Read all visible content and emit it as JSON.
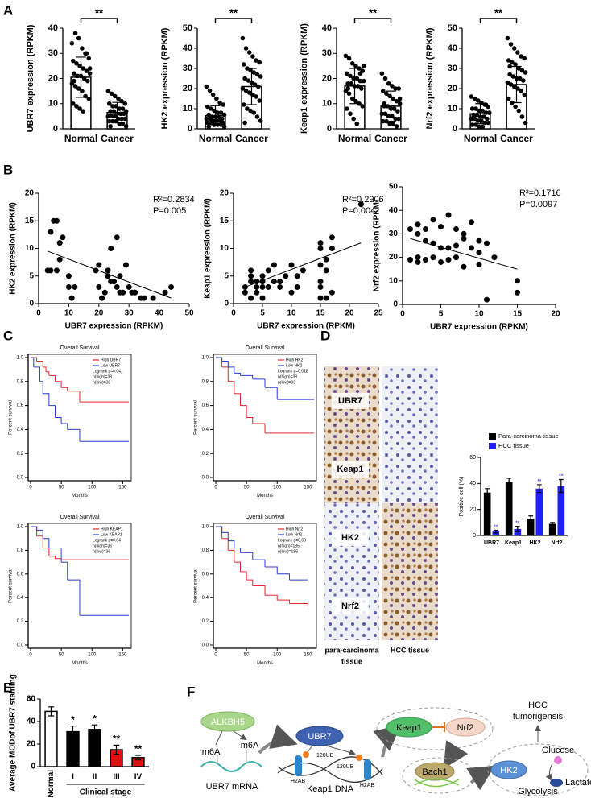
{
  "panel_labels": [
    "A",
    "B",
    "C",
    "D",
    "E",
    "F"
  ],
  "chart_data": [
    {
      "type": "bar",
      "ylabel": "UBR7 expression (RPKM)",
      "categories": [
        "Normal",
        "Cancer"
      ],
      "values": [
        20.5,
        6.5
      ],
      "errors": [
        8,
        4
      ],
      "ylim": [
        0,
        40
      ],
      "yticks": [
        0,
        10,
        20,
        30,
        40
      ],
      "significance": "**",
      "points": [
        [
          34,
          38,
          36,
          32,
          30,
          28,
          27,
          26,
          25,
          24,
          23,
          22,
          22,
          21,
          21,
          20,
          19,
          18,
          17,
          16,
          15,
          13,
          12,
          10,
          9,
          8,
          7,
          30,
          24,
          19
        ],
        [
          15,
          14,
          13,
          12,
          11,
          10,
          10,
          9,
          9,
          8,
          8,
          7,
          7,
          7,
          6,
          6,
          6,
          5,
          5,
          5,
          4,
          4,
          4,
          3,
          3,
          3,
          2,
          2,
          1,
          1
        ]
      ]
    },
    {
      "type": "bar",
      "ylabel": "HK2 expression (RPKM)",
      "categories": [
        "Normal",
        "Cancer"
      ],
      "values": [
        6.5,
        21
      ],
      "errors": [
        5,
        9
      ],
      "ylim": [
        0,
        50
      ],
      "yticks": [
        0,
        10,
        20,
        30,
        40,
        50
      ],
      "significance": "**",
      "points": [
        [
          21,
          19,
          17,
          15,
          13,
          12,
          11,
          10,
          9,
          8,
          8,
          7,
          7,
          6,
          6,
          6,
          5,
          5,
          5,
          4,
          4,
          4,
          3,
          3,
          3,
          2,
          2,
          2,
          1,
          1
        ],
        [
          45,
          40,
          38,
          36,
          34,
          33,
          32,
          30,
          29,
          28,
          27,
          26,
          25,
          24,
          23,
          22,
          21,
          20,
          19,
          18,
          17,
          16,
          14,
          12,
          10,
          9,
          8,
          6,
          4,
          3
        ]
      ]
    },
    {
      "type": "bar",
      "ylabel": "Keap1 expression (RPKM)",
      "categories": [
        "Normal",
        "Cancer"
      ],
      "values": [
        17,
        9
      ],
      "errors": [
        7,
        6
      ],
      "ylim": [
        0,
        40
      ],
      "yticks": [
        0,
        10,
        20,
        30,
        40
      ],
      "significance": "**",
      "points": [
        [
          29,
          28,
          26,
          25,
          24,
          23,
          22,
          21,
          20,
          20,
          19,
          19,
          18,
          18,
          17,
          17,
          16,
          15,
          14,
          12,
          11,
          10,
          9,
          8,
          6,
          4,
          2,
          22,
          25,
          16
        ],
        [
          22,
          20,
          18,
          17,
          16,
          16,
          15,
          14,
          13,
          12,
          11,
          10,
          9,
          9,
          8,
          8,
          7,
          6,
          6,
          5,
          5,
          4,
          4,
          3,
          3,
          2,
          2,
          1,
          12,
          10
        ]
      ]
    },
    {
      "type": "bar",
      "ylabel": "Nrf2 expression (RPKM)",
      "categories": [
        "Normal",
        "Cancer"
      ],
      "values": [
        7.5,
        22
      ],
      "errors": [
        5,
        9
      ],
      "ylim": [
        0,
        50
      ],
      "yticks": [
        0,
        10,
        20,
        30,
        40,
        50
      ],
      "significance": "**",
      "points": [
        [
          16,
          15,
          14,
          13,
          12,
          11,
          10,
          10,
          9,
          9,
          8,
          8,
          7,
          7,
          6,
          6,
          5,
          5,
          5,
          4,
          4,
          3,
          3,
          2,
          2,
          1,
          1,
          12,
          8,
          6
        ],
        [
          45,
          42,
          40,
          38,
          36,
          35,
          34,
          33,
          32,
          30,
          29,
          28,
          27,
          26,
          25,
          25,
          24,
          23,
          22,
          21,
          20,
          19,
          17,
          15,
          13,
          11,
          9,
          6,
          3,
          31
        ]
      ]
    },
    {
      "type": "scatter",
      "xlabel": "UBR7 expression (RPKM)",
      "ylabel": "HK2 expression (RPKM)",
      "xlim": [
        0,
        50
      ],
      "xticks": [
        0,
        10,
        20,
        30,
        40,
        50
      ],
      "ylim": [
        0,
        20
      ],
      "yticks": [
        0,
        5,
        10,
        15,
        20
      ],
      "annotations": [
        "R²=0.2834",
        "P=0.005"
      ],
      "x": [
        3,
        4,
        5,
        6,
        7,
        7,
        8,
        6,
        4,
        10,
        10,
        11,
        12,
        19,
        20,
        20,
        21,
        22,
        23,
        24,
        24,
        25,
        26,
        26,
        27,
        28,
        29,
        30,
        31,
        32,
        34,
        35,
        38,
        42,
        44,
        23,
        27
      ],
      "y": [
        6,
        13,
        15,
        15,
        11,
        8,
        12,
        6,
        6,
        5,
        3,
        1,
        3,
        6,
        7,
        3,
        1,
        2,
        6,
        4,
        10,
        4,
        12,
        3,
        2,
        2,
        7,
        3,
        2,
        2,
        1,
        1,
        1,
        2,
        3,
        5,
        5
      ],
      "fit": {
        "x": [
          3,
          44
        ],
        "y": [
          9.5,
          1
        ]
      }
    },
    {
      "type": "scatter",
      "xlabel": "UBR7 expression (RPKM)",
      "ylabel": "Keap1 expression (RPKM)",
      "xlim": [
        0,
        25
      ],
      "xticks": [
        0,
        5,
        10,
        15,
        20,
        25
      ],
      "ylim": [
        0,
        20
      ],
      "yticks": [
        0,
        5,
        10,
        15,
        20
      ],
      "annotations": [
        "R²=0.2906",
        "P=0.004"
      ],
      "x": [
        2,
        2,
        3,
        3,
        3,
        4,
        4,
        4,
        5,
        5,
        5,
        6,
        6,
        7,
        7,
        8,
        8,
        9,
        10,
        10,
        11,
        11,
        12,
        15,
        15,
        15,
        15,
        15,
        16,
        16,
        17,
        17,
        17,
        16,
        15,
        22,
        5,
        3
      ],
      "y": [
        2,
        3,
        4,
        5,
        6,
        3,
        4,
        2,
        3,
        4,
        5,
        3,
        6,
        4,
        7,
        3,
        4,
        5,
        2,
        7,
        3,
        5,
        6,
        3,
        4,
        7,
        10,
        11,
        6,
        8,
        10,
        12,
        2,
        1,
        1,
        18,
        1,
        1
      ],
      "fit": {
        "x": [
          2,
          22
        ],
        "y": [
          3,
          11
        ]
      }
    },
    {
      "type": "scatter",
      "xlabel": "UBR7 expression (RPKM)",
      "ylabel": "Nrf2 expression (RPKM)",
      "xlim": [
        0,
        20
      ],
      "xticks": [
        0,
        5,
        10,
        15,
        20
      ],
      "ylim": [
        0,
        50
      ],
      "yticks": [
        0,
        10,
        20,
        30,
        40,
        50
      ],
      "annotations": [
        "R²=0.1716",
        "P=0.0097"
      ],
      "x": [
        1,
        1,
        2,
        2,
        2,
        3,
        3,
        3,
        4,
        4,
        4,
        5,
        5,
        5,
        6,
        6,
        7,
        7,
        7,
        8,
        8,
        8,
        9,
        9,
        10,
        10,
        10,
        11,
        11,
        12,
        15,
        15,
        6,
        2
      ],
      "y": [
        19,
        32,
        18,
        30,
        34,
        19,
        27,
        32,
        20,
        26,
        36,
        18,
        33,
        24,
        19,
        24,
        20,
        25,
        32,
        30,
        28,
        16,
        24,
        35,
        27,
        22,
        17,
        26,
        2,
        20,
        10,
        5,
        38,
        20
      ],
      "fit": {
        "x": [
          1,
          15
        ],
        "y": [
          28,
          15
        ]
      }
    },
    {
      "type": "line",
      "title": "Overall Survival",
      "xlabel": "Months",
      "ylabel": "Percent survival",
      "xlim": [
        0,
        160
      ],
      "xticks": [
        0,
        50,
        100,
        150
      ],
      "ylim": [
        0,
        1
      ],
      "yticks": [
        {
          "value": 0,
          "label": "0.0"
        },
        0.2,
        0.4,
        0.6,
        0.8,
        {
          "value": 1,
          "label": "1.0"
        }
      ],
      "annotations": [
        "Logrank p=0.041",
        "n(high)=38",
        "n(low)=38"
      ],
      "series": [
        {
          "name": "High UBR7",
          "color": "#e8262b",
          "x": [
            0,
            10,
            20,
            25,
            30,
            40,
            50,
            60,
            80,
            160
          ],
          "y": [
            1,
            0.97,
            0.92,
            0.88,
            0.85,
            0.8,
            0.75,
            0.72,
            0.63,
            0.63
          ]
        },
        {
          "name": "Low UBR7",
          "color": "#2b3ed6",
          "x": [
            0,
            5,
            15,
            20,
            30,
            40,
            50,
            60,
            80,
            160
          ],
          "y": [
            1,
            0.92,
            0.8,
            0.7,
            0.6,
            0.5,
            0.45,
            0.4,
            0.3,
            0.3
          ]
        }
      ]
    },
    {
      "type": "line",
      "title": "Overall Survival",
      "xlabel": "Months",
      "ylabel": "Percent survival",
      "xlim": [
        0,
        160
      ],
      "xticks": [
        0,
        50,
        100,
        150
      ],
      "ylim": [
        0,
        1
      ],
      "yticks": [
        {
          "value": 0,
          "label": "0.0"
        },
        0.2,
        0.4,
        0.6,
        0.8,
        {
          "value": 1,
          "label": "1.0"
        }
      ],
      "annotations": [
        "Logrank p=0.018",
        "n(high)=38",
        "n(low)=38"
      ],
      "series": [
        {
          "name": "High HK2",
          "color": "#e8262b",
          "x": [
            0,
            10,
            20,
            30,
            40,
            50,
            60,
            80,
            160
          ],
          "y": [
            1,
            0.92,
            0.8,
            0.7,
            0.6,
            0.5,
            0.45,
            0.37,
            0.37
          ]
        },
        {
          "name": "Low HK2",
          "color": "#2b3ed6",
          "x": [
            0,
            10,
            20,
            30,
            40,
            60,
            80,
            100,
            160
          ],
          "y": [
            1,
            0.97,
            0.92,
            0.87,
            0.85,
            0.82,
            0.75,
            0.65,
            0.65
          ]
        }
      ]
    },
    {
      "type": "line",
      "title": "Overall Survival",
      "xlabel": "Months",
      "ylabel": "Percent survival",
      "xlim": [
        0,
        160
      ],
      "xticks": [
        0,
        50,
        100,
        150
      ],
      "ylim": [
        0,
        1
      ],
      "yticks": [
        {
          "value": 0,
          "label": "0.0"
        },
        0.2,
        0.4,
        0.6,
        0.8,
        {
          "value": 1,
          "label": "1.0"
        }
      ],
      "annotations": [
        "Logrank p=0.04",
        "n(high)=36",
        "n(low)=36"
      ],
      "series": [
        {
          "name": "High KEAP1",
          "color": "#e8262b",
          "x": [
            0,
            10,
            20,
            30,
            40,
            50,
            80,
            160
          ],
          "y": [
            1,
            0.92,
            0.82,
            0.75,
            0.73,
            0.72,
            0.72,
            0.72
          ]
        },
        {
          "name": "Low KEAP1",
          "color": "#2b3ed6",
          "x": [
            0,
            10,
            20,
            30,
            50,
            60,
            80,
            160
          ],
          "y": [
            1,
            0.97,
            0.9,
            0.82,
            0.7,
            0.55,
            0.25,
            0.25
          ]
        }
      ]
    },
    {
      "type": "line",
      "title": "Overall Survival",
      "xlabel": "Months",
      "ylabel": "Percent survival",
      "xlim": [
        0,
        160
      ],
      "xticks": [
        0,
        50,
        100,
        150
      ],
      "ylim": [
        0,
        1
      ],
      "yticks": [
        {
          "value": 0,
          "label": "0.0"
        },
        0.2,
        0.4,
        0.6,
        0.8,
        {
          "value": 1,
          "label": "1.0"
        }
      ],
      "annotations": [
        "Logrank p=0.03",
        "n(high)=185",
        "n(low)=186"
      ],
      "series": [
        {
          "name": "High Nrf2",
          "color": "#e8262b",
          "x": [
            0,
            10,
            20,
            30,
            40,
            50,
            60,
            80,
            100,
            120,
            150
          ],
          "y": [
            1,
            0.9,
            0.8,
            0.7,
            0.62,
            0.55,
            0.5,
            0.42,
            0.38,
            0.35,
            0.33
          ]
        },
        {
          "name": "Low Nrf2",
          "color": "#2b3ed6",
          "x": [
            0,
            10,
            20,
            30,
            40,
            60,
            80,
            100,
            120,
            150
          ],
          "y": [
            1,
            0.95,
            0.88,
            0.82,
            0.78,
            0.72,
            0.66,
            0.6,
            0.55,
            0.55
          ]
        }
      ]
    },
    {
      "type": "grouped",
      "ylabel": "Positive cell (%)",
      "categories": [
        "UBR7",
        "Keap1",
        "HK2",
        "Nrf2"
      ],
      "ylim": [
        0,
        60
      ],
      "yticks": [
        0,
        20,
        40,
        60
      ],
      "series": [
        {
          "name": "Para-carcinoma tissue",
          "color": "#000000",
          "values": [
            33,
            41,
            13,
            9
          ],
          "errors": [
            3,
            3,
            2,
            1
          ]
        },
        {
          "name": "HCC tissue",
          "color": "#1f1fff",
          "values": [
            3,
            5,
            36,
            38
          ],
          "errors": [
            1,
            2,
            3,
            5
          ],
          "significance": [
            "**",
            "**",
            "**",
            "**"
          ]
        }
      ]
    },
    {
      "type": "bar",
      "ylabel": "Average MODof UBR7 staining",
      "xlabel": "Clinical stage",
      "categories": [
        "Normal",
        "I",
        "II",
        "III",
        "IV"
      ],
      "values": [
        49,
        31,
        33,
        15,
        8
      ],
      "errors": [
        4,
        5,
        4,
        4,
        2
      ],
      "colors": [
        "#ffffff",
        "#000000",
        "#000000",
        "#e01010",
        "#e01010"
      ],
      "sig": [
        null,
        "*",
        "*",
        "**",
        "**"
      ],
      "ylim": [
        0,
        60
      ],
      "yticks": [
        0,
        20,
        40,
        60
      ]
    }
  ],
  "ihc": {
    "rows": [
      "UBR7",
      "Keap1",
      "HK2",
      "Nrf2"
    ],
    "columns": [
      [
        "para-carcinoma",
        "tissue"
      ],
      [
        "HCC tissue"
      ]
    ]
  },
  "diagram": {
    "labels": [
      "ALKBH5",
      "m6A",
      "m6A",
      "UBR7 mRNA",
      "UBR7",
      "120UB",
      "120UB",
      "H2AB",
      "H2AB",
      "Keap1 DNA",
      "Keap1",
      "Nrf2",
      "Bach1",
      "HK2",
      "Glucose",
      "Lactate",
      "Glycolysis"
    ],
    "outcome": [
      "HCC",
      "tumorigensis"
    ]
  }
}
